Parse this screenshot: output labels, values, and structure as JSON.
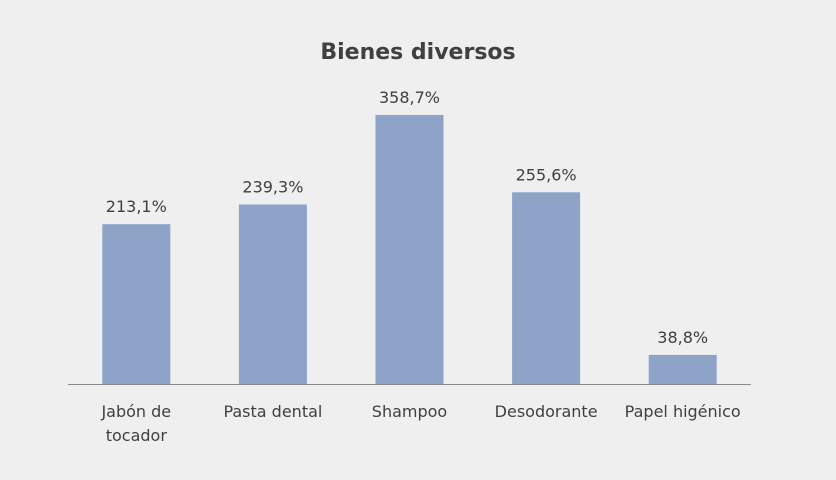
{
  "chart_data": {
    "type": "bar",
    "title": "Bienes diversos",
    "categories": [
      [
        "Jabón de",
        "tocador"
      ],
      [
        "Pasta dental"
      ],
      [
        "Shampoo"
      ],
      [
        "Desodorante"
      ],
      [
        "Papel higénico"
      ]
    ],
    "values": [
      213.1,
      239.3,
      358.7,
      255.6,
      38.8
    ],
    "data_labels": [
      "213,1%",
      "239,3%",
      "358,7%",
      "255,6%",
      "38,8%"
    ],
    "ylim": [
      0,
      400
    ],
    "xlabel": "",
    "ylabel": "",
    "grid": false,
    "legend": "none",
    "bar_color": "#8ea3c8",
    "axis_color": "#8a8a8a",
    "background": "#efefef"
  }
}
